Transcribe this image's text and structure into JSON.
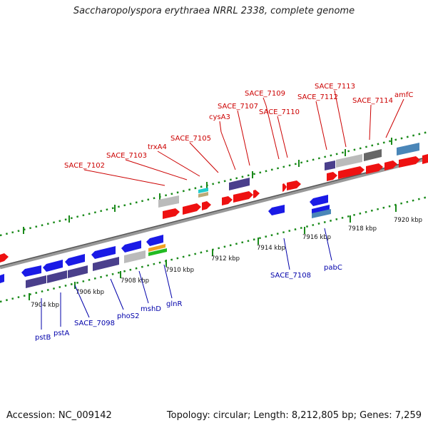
{
  "title": "Saccharopolyspora erythraea NRRL 2338, complete genome",
  "accession": "Accession: NC_009142",
  "topology": "Topology: circular; Length: 8,212,805 bp; Genes: 7,259",
  "colors": {
    "forward_gene": "#ee1111",
    "reverse_gene": "#1a1ae6",
    "label_forward": "#cc0000",
    "label_reverse": "#0000aa",
    "backbone": "#8a8a8a",
    "tick": "#1a8a1a",
    "purple_feature": "#4a3f8c",
    "grey_feature": "#bbbbbb",
    "dark_grey_feature": "#666666",
    "steel_feature": "#4a86b8"
  },
  "ruler_labels": [
    "7904 kbp",
    "7906 kbp",
    "7908 kbp",
    "7910 kbp",
    "7912 kbp",
    "7914 kbp",
    "7916 kbp",
    "7918 kbp",
    "7920 kbp"
  ],
  "top_labels": [
    "SACE_7102",
    "SACE_7103",
    "trxA4",
    "SACE_7105",
    "cysA3",
    "SACE_7107",
    "SACE_7109",
    "SACE_7110",
    "SACE_7112",
    "SACE_7113",
    "SACE_7114",
    "amfC"
  ],
  "bottom_labels": [
    "pstB",
    "pstA",
    "SACE_7098",
    "phoS2",
    "mshD",
    "glnR",
    "SACE_7108",
    "pabC"
  ]
}
